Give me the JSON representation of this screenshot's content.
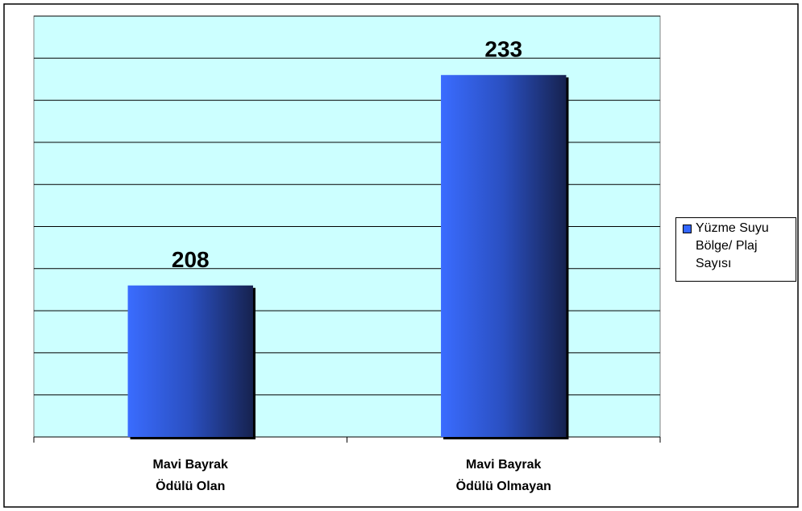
{
  "chart_data": {
    "type": "bar",
    "categories": [
      [
        "Mavi Bayrak",
        "Ödülü Olan"
      ],
      [
        "Mavi Bayrak",
        "Ödülü Olmayan"
      ]
    ],
    "series": [
      {
        "name": "Yüzme Suyu Bölge/ Plaj Sayısı",
        "color": "#3366ff",
        "values": [
          208,
          233
        ]
      }
    ],
    "ylim": [
      190,
      240
    ],
    "yticks": [
      190,
      195,
      200,
      205,
      210,
      215,
      220,
      225,
      230,
      235,
      240
    ],
    "grid": true,
    "legend": "right",
    "plot_background": "#ccffff"
  }
}
